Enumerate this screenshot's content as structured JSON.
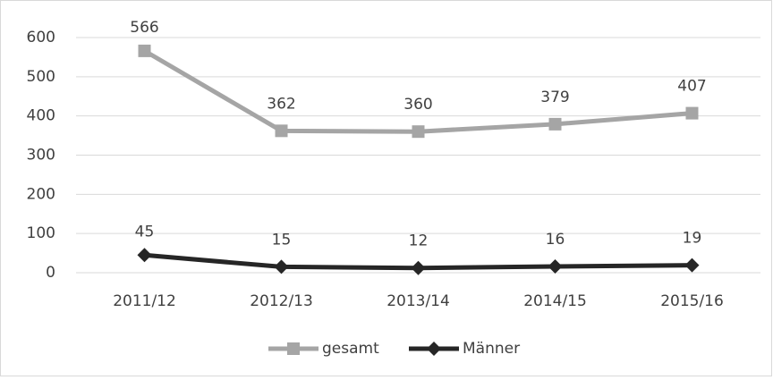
{
  "chart_data": {
    "type": "line",
    "categories": [
      "2011/12",
      "2012/13",
      "2013/14",
      "2014/15",
      "2015/16"
    ],
    "series": [
      {
        "name": "gesamt",
        "color": "#a5a5a5",
        "marker": "square",
        "values": [
          566,
          362,
          360,
          379,
          407
        ]
      },
      {
        "name": "Männer",
        "color": "#262626",
        "marker": "diamond",
        "values": [
          45,
          15,
          12,
          16,
          19
        ]
      }
    ],
    "ylim": [
      0,
      600
    ],
    "yticks": [
      0,
      100,
      200,
      300,
      400,
      500,
      600
    ],
    "grid": true,
    "legend": "bottom",
    "data_labels": true
  }
}
